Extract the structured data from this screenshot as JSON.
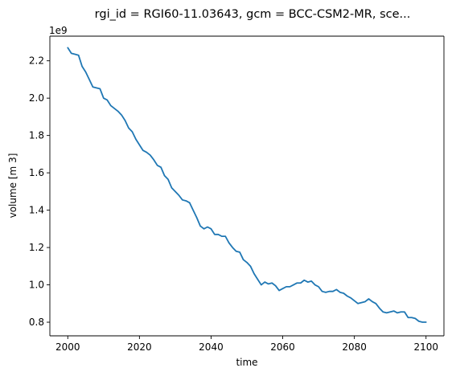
{
  "chart_data": {
    "type": "line",
    "title": "rgi_id = RGI60-11.03643, gcm = BCC-CSM2-MR, sce...",
    "xlabel": "time",
    "ylabel": "volume [m 3]",
    "y_offset_label": "1e9",
    "xlim": [
      1995,
      2105
    ],
    "ylim": [
      0.727,
      2.332
    ],
    "grid": false,
    "legend": "none",
    "line_color": "#1f77b4",
    "x_ticks": [
      2000,
      2020,
      2040,
      2060,
      2080,
      2100
    ],
    "x_tick_labels": [
      "2000",
      "2020",
      "2040",
      "2060",
      "2080",
      "2100"
    ],
    "y_ticks": [
      0.8,
      1.0,
      1.2,
      1.4,
      1.6,
      1.8,
      2.0,
      2.2
    ],
    "y_tick_labels": [
      "0.8",
      "1.0",
      "1.2",
      "1.4",
      "1.6",
      "1.8",
      "2.0",
      "2.2"
    ],
    "series": [
      {
        "x": [
          2000,
          2001,
          2002,
          2003,
          2004,
          2005,
          2006,
          2007,
          2008,
          2009,
          2010,
          2011,
          2012,
          2013,
          2014,
          2015,
          2016,
          2017,
          2018,
          2019,
          2020,
          2021,
          2022,
          2023,
          2024,
          2025,
          2026,
          2027,
          2028,
          2029,
          2030,
          2031,
          2032,
          2033,
          2034,
          2035,
          2036,
          2037,
          2038,
          2039,
          2040,
          2041,
          2042,
          2043,
          2044,
          2045,
          2046,
          2047,
          2048,
          2049,
          2050,
          2051,
          2052,
          2053,
          2054,
          2055,
          2056,
          2057,
          2058,
          2059,
          2060,
          2061,
          2062,
          2063,
          2064,
          2065,
          2066,
          2067,
          2068,
          2069,
          2070,
          2071,
          2072,
          2073,
          2074,
          2075,
          2076,
          2077,
          2078,
          2079,
          2080,
          2081,
          2082,
          2083,
          2084,
          2085,
          2086,
          2087,
          2088,
          2089,
          2090,
          2091,
          2092,
          2093,
          2094,
          2095,
          2096,
          2097,
          2098,
          2099,
          2100
        ],
        "y": [
          2.27,
          2.24,
          2.235,
          2.23,
          2.17,
          2.14,
          2.1,
          2.06,
          2.055,
          2.05,
          2.0,
          1.99,
          1.96,
          1.945,
          1.93,
          1.91,
          1.88,
          1.84,
          1.82,
          1.78,
          1.75,
          1.72,
          1.71,
          1.695,
          1.67,
          1.64,
          1.63,
          1.585,
          1.565,
          1.52,
          1.5,
          1.48,
          1.455,
          1.45,
          1.44,
          1.4,
          1.36,
          1.315,
          1.3,
          1.31,
          1.3,
          1.27,
          1.27,
          1.26,
          1.26,
          1.225,
          1.2,
          1.18,
          1.175,
          1.135,
          1.12,
          1.1,
          1.06,
          1.03,
          1.0,
          1.015,
          1.005,
          1.01,
          0.995,
          0.97,
          0.98,
          0.99,
          0.99,
          1.0,
          1.01,
          1.01,
          1.025,
          1.015,
          1.02,
          1.0,
          0.99,
          0.965,
          0.96,
          0.965,
          0.965,
          0.975,
          0.96,
          0.955,
          0.94,
          0.93,
          0.915,
          0.9,
          0.905,
          0.91,
          0.925,
          0.91,
          0.9,
          0.875,
          0.855,
          0.85,
          0.855,
          0.86,
          0.85,
          0.855,
          0.855,
          0.825,
          0.825,
          0.82,
          0.805,
          0.8,
          0.8
        ]
      }
    ]
  }
}
